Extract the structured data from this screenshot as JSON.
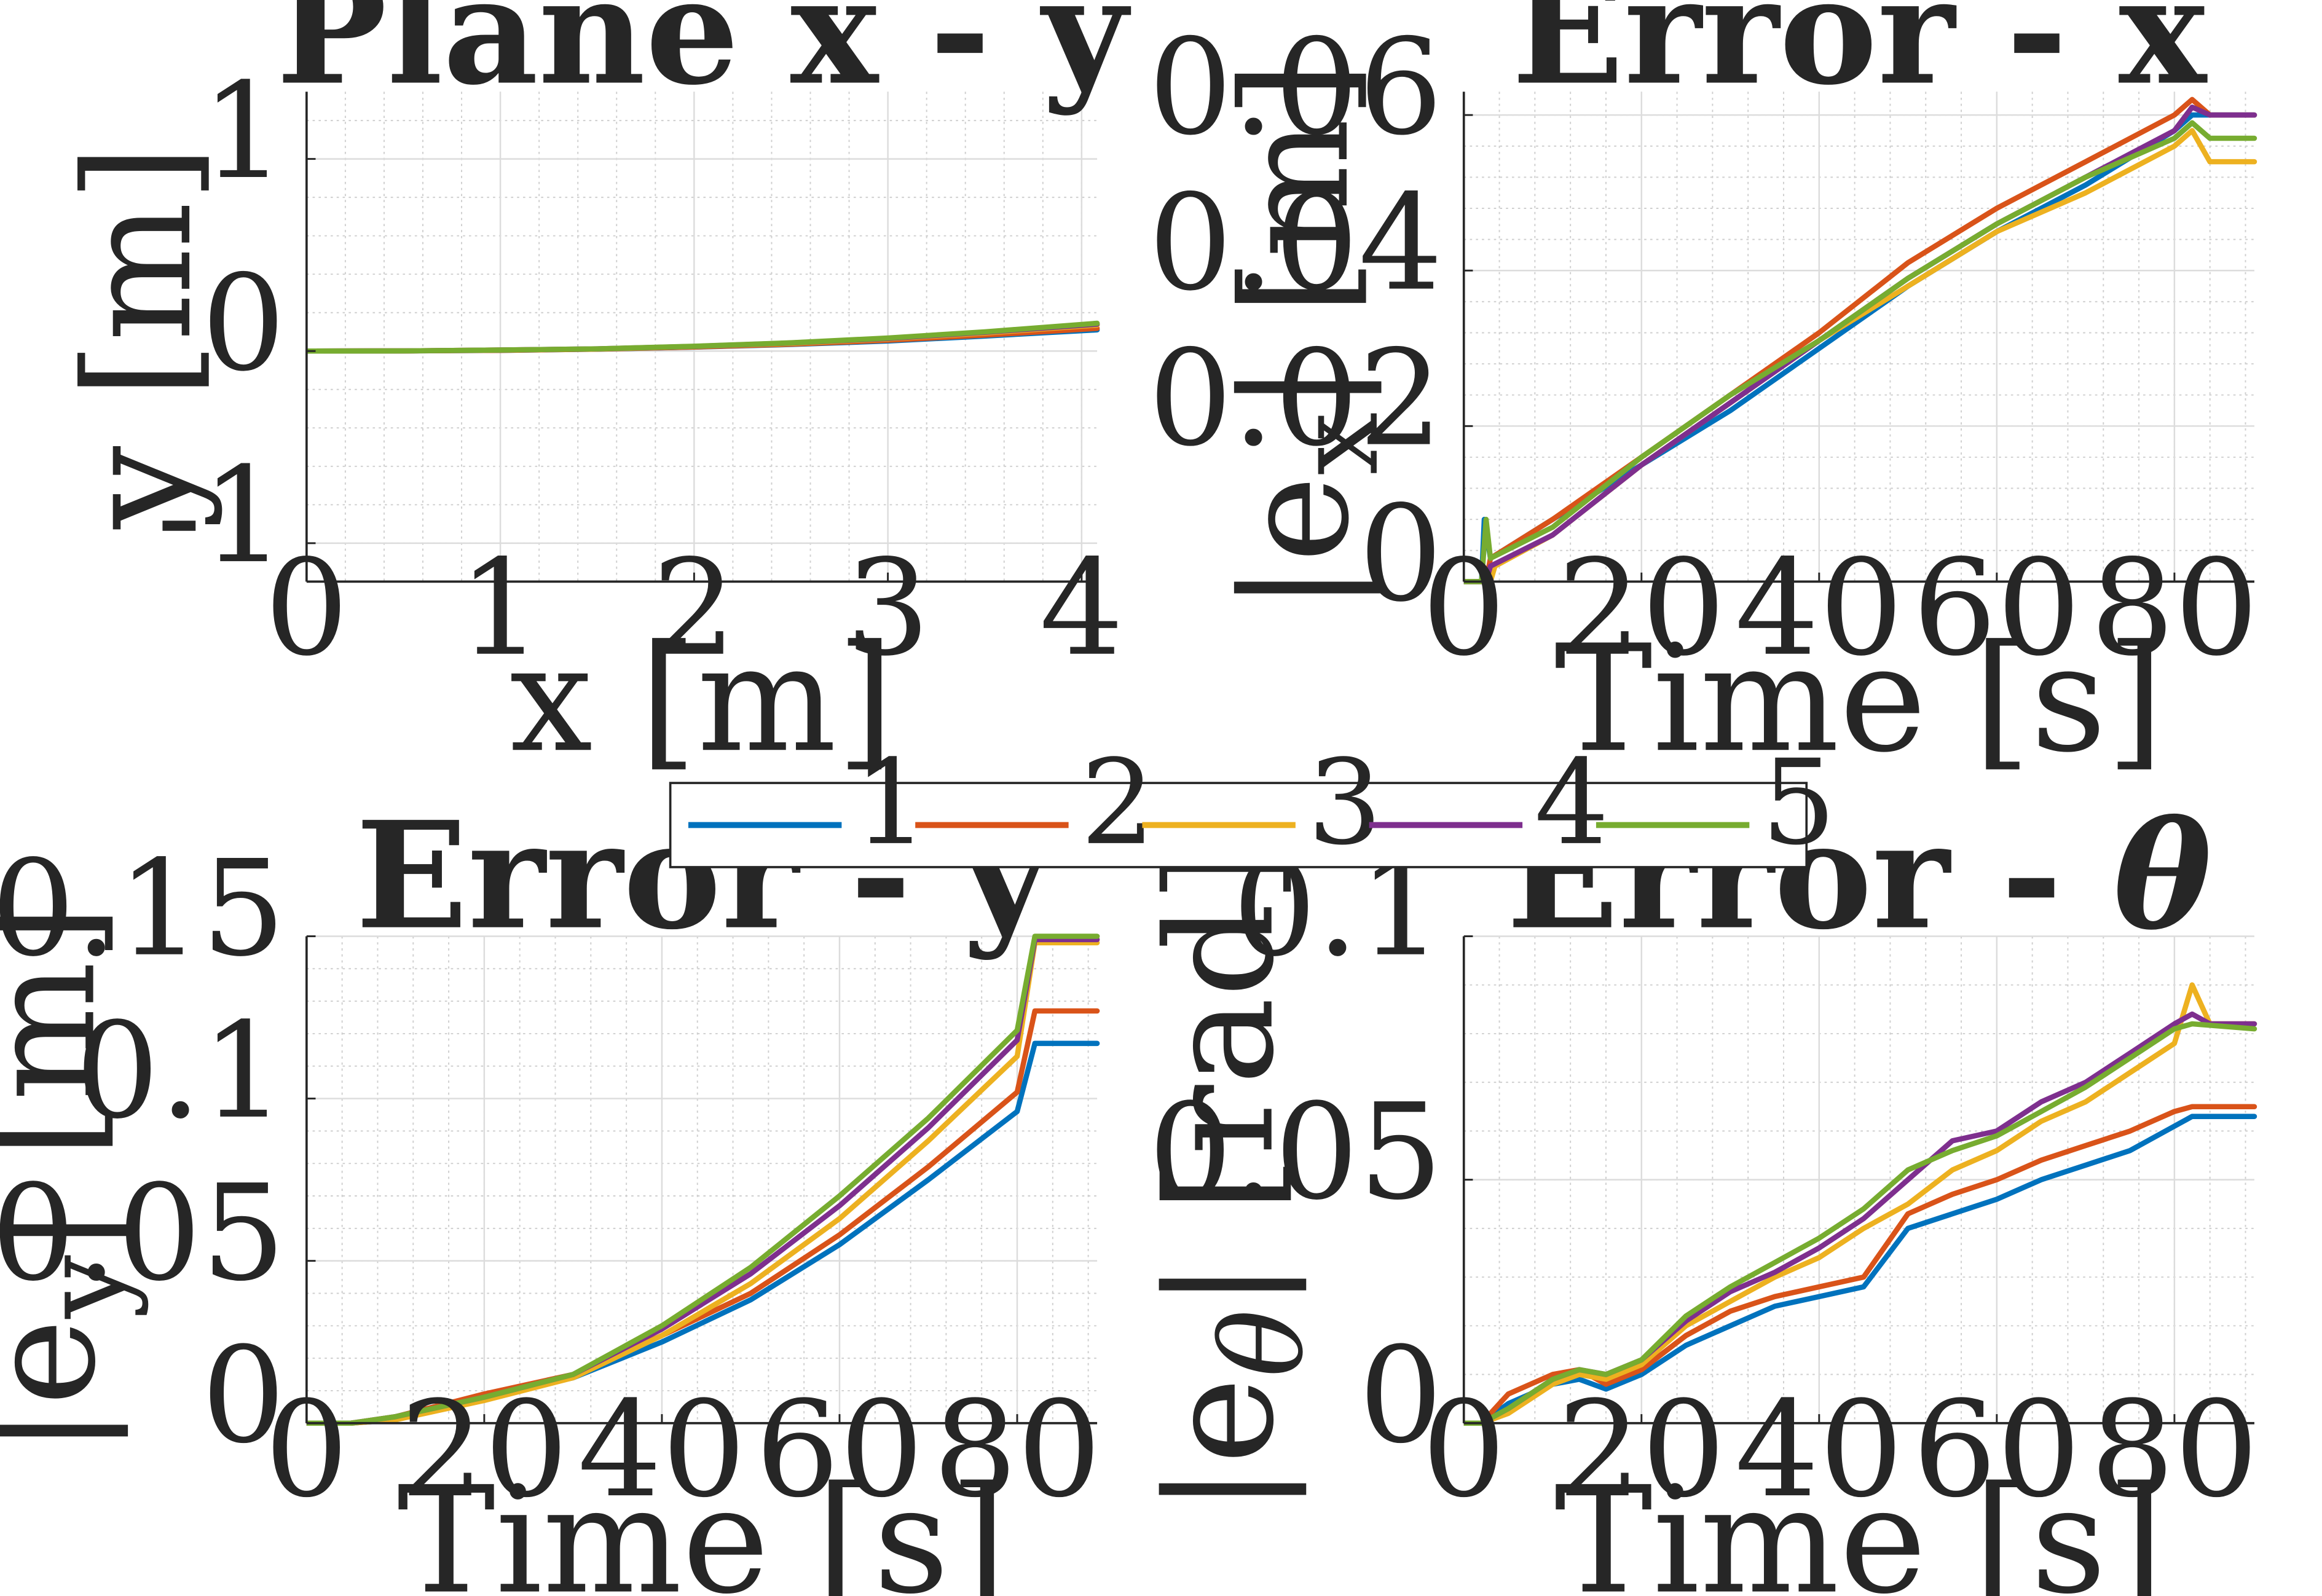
{
  "legend": {
    "entries": [
      "1",
      "2",
      "3",
      "4",
      "5"
    ],
    "colors": [
      "#0072BD",
      "#D95319",
      "#EDB120",
      "#7E2F8E",
      "#77AC30"
    ]
  },
  "chart_data": [
    {
      "type": "line",
      "title": "Plane x - y",
      "xlabel": "x [m]",
      "ylabel": "y [m]",
      "xlim": [
        0,
        4.08
      ],
      "ylim": [
        -1.2,
        1.35
      ],
      "xticks": [
        0,
        1,
        2,
        3,
        4
      ],
      "yticks": [
        -1,
        0,
        1
      ],
      "xtick_labels": [
        "0",
        "1",
        "2",
        "3",
        "4"
      ],
      "ytick_labels": [
        "-1",
        "0",
        "1"
      ],
      "grid": true,
      "series": [
        {
          "name": "1",
          "x": [
            0,
            0.5,
            1,
            1.5,
            2,
            2.5,
            3,
            3.5,
            4.08
          ],
          "y": [
            0,
            0.001,
            0.004,
            0.01,
            0.02,
            0.034,
            0.052,
            0.078,
            0.11
          ]
        },
        {
          "name": "2",
          "x": [
            0,
            0.5,
            1,
            1.5,
            2,
            2.5,
            3,
            3.5,
            4.08
          ],
          "y": [
            0,
            0.001,
            0.004,
            0.01,
            0.021,
            0.036,
            0.056,
            0.083,
            0.118
          ]
        },
        {
          "name": "3",
          "x": [
            0,
            0.5,
            1,
            1.5,
            2,
            2.5,
            3,
            3.5,
            4.08
          ],
          "y": [
            0,
            0.001,
            0.005,
            0.011,
            0.023,
            0.04,
            0.063,
            0.094,
            0.135
          ]
        },
        {
          "name": "4",
          "x": [
            0,
            0.5,
            1,
            1.5,
            2,
            2.5,
            3,
            3.5,
            4.08
          ],
          "y": [
            0,
            0.001,
            0.005,
            0.012,
            0.024,
            0.042,
            0.066,
            0.098,
            0.14
          ]
        },
        {
          "name": "5",
          "x": [
            0,
            0.5,
            1,
            1.5,
            2,
            2.5,
            3,
            3.5,
            4.08
          ],
          "y": [
            0,
            0.001,
            0.005,
            0.012,
            0.025,
            0.043,
            0.068,
            0.1,
            0.145
          ]
        }
      ]
    },
    {
      "type": "line",
      "title": "Error - x",
      "xlabel": "Time [s]",
      "ylabel": "|e_x| [m]",
      "xlim": [
        0,
        89
      ],
      "ylim": [
        0,
        0.063
      ],
      "xticks": [
        0,
        20,
        40,
        60,
        80
      ],
      "yticks": [
        0,
        0.02,
        0.04,
        0.06
      ],
      "xtick_labels": [
        "0",
        "20",
        "40",
        "60",
        "80"
      ],
      "ytick_labels": [
        "0",
        "0.02",
        "0.04",
        "0.06"
      ],
      "grid": true,
      "series": [
        {
          "name": "1",
          "x": [
            0,
            2,
            2.3,
            3,
            10,
            20,
            30,
            40,
            50,
            60,
            70,
            80,
            82,
            84,
            89
          ],
          "y": [
            0,
            0,
            0.008,
            0.003,
            0.008,
            0.015,
            0.022,
            0.03,
            0.038,
            0.045,
            0.051,
            0.058,
            0.06,
            0.06,
            0.06
          ]
        },
        {
          "name": "2",
          "x": [
            0,
            2.5,
            3,
            10,
            20,
            30,
            40,
            50,
            60,
            70,
            80,
            82,
            84,
            89
          ],
          "y": [
            0,
            0,
            0.003,
            0.008,
            0.016,
            0.024,
            0.032,
            0.041,
            0.048,
            0.054,
            0.06,
            0.062,
            0.06,
            0.06
          ]
        },
        {
          "name": "3",
          "x": [
            0,
            3,
            3.5,
            10,
            20,
            30,
            40,
            50,
            60,
            70,
            80,
            82,
            84,
            89
          ],
          "y": [
            0,
            0,
            0.002,
            0.006,
            0.015,
            0.023,
            0.031,
            0.038,
            0.045,
            0.05,
            0.056,
            0.058,
            0.054,
            0.054
          ]
        },
        {
          "name": "4",
          "x": [
            0,
            2.5,
            3,
            10,
            20,
            30,
            40,
            50,
            60,
            70,
            80,
            82,
            84,
            89
          ],
          "y": [
            0,
            0,
            0.002,
            0.006,
            0.015,
            0.023,
            0.031,
            0.039,
            0.046,
            0.052,
            0.058,
            0.061,
            0.06,
            0.06
          ]
        },
        {
          "name": "5",
          "x": [
            0,
            2,
            2.5,
            3,
            10,
            20,
            30,
            40,
            50,
            60,
            70,
            80,
            82,
            84,
            89
          ],
          "y": [
            0,
            0,
            0.008,
            0.003,
            0.007,
            0.016,
            0.024,
            0.031,
            0.039,
            0.046,
            0.052,
            0.057,
            0.059,
            0.057,
            0.057
          ]
        }
      ]
    },
    {
      "type": "line",
      "title": "Error - y",
      "xlabel": "Time [s]",
      "ylabel": "|e_y| [m]",
      "xlim": [
        0,
        89
      ],
      "ylim": [
        0,
        0.15
      ],
      "xticks": [
        0,
        20,
        40,
        60,
        80
      ],
      "yticks": [
        0,
        0.05,
        0.1,
        0.15
      ],
      "xtick_labels": [
        "0",
        "20",
        "40",
        "60",
        "80"
      ],
      "ytick_labels": [
        "0",
        "0.05",
        "0.1",
        "0.15"
      ],
      "grid": true,
      "series": [
        {
          "name": "1",
          "x": [
            0,
            5,
            10,
            20,
            30,
            40,
            50,
            60,
            70,
            80,
            82,
            89
          ],
          "y": [
            0,
            0,
            0.001,
            0.008,
            0.014,
            0.025,
            0.038,
            0.055,
            0.075,
            0.096,
            0.117,
            0.117
          ]
        },
        {
          "name": "2",
          "x": [
            0,
            5,
            10,
            20,
            30,
            40,
            50,
            60,
            70,
            80,
            82,
            89
          ],
          "y": [
            0,
            0,
            0.002,
            0.009,
            0.015,
            0.027,
            0.04,
            0.058,
            0.079,
            0.102,
            0.127,
            0.127
          ]
        },
        {
          "name": "3",
          "x": [
            0,
            5,
            10,
            20,
            30,
            40,
            50,
            60,
            70,
            80,
            82,
            89
          ],
          "y": [
            0,
            0,
            0.001,
            0.007,
            0.014,
            0.027,
            0.043,
            0.063,
            0.087,
            0.113,
            0.148,
            0.148
          ]
        },
        {
          "name": "4",
          "x": [
            0,
            5,
            10,
            20,
            30,
            40,
            50,
            60,
            70,
            80,
            82,
            89
          ],
          "y": [
            0,
            0,
            0.002,
            0.008,
            0.015,
            0.029,
            0.046,
            0.067,
            0.091,
            0.118,
            0.149,
            0.149
          ]
        },
        {
          "name": "5",
          "x": [
            0,
            5,
            10,
            20,
            30,
            40,
            50,
            60,
            70,
            80,
            82,
            89
          ],
          "y": [
            0,
            0,
            0.002,
            0.008,
            0.015,
            0.03,
            0.048,
            0.07,
            0.094,
            0.121,
            0.15,
            0.15
          ]
        }
      ]
    },
    {
      "type": "line",
      "title": "Error - θ",
      "xlabel": "Time [s]",
      "ylabel": "|e_θ| [rad]",
      "xlim": [
        0,
        89
      ],
      "ylim": [
        0,
        0.1
      ],
      "xticks": [
        0,
        20,
        40,
        60,
        80
      ],
      "yticks": [
        0,
        0.05,
        0.1
      ],
      "xtick_labels": [
        "0",
        "20",
        "40",
        "60",
        "80"
      ],
      "ytick_labels": [
        "0",
        "0.05",
        "0.1"
      ],
      "grid": true,
      "series": [
        {
          "name": "1",
          "x": [
            0,
            2,
            5,
            10,
            13,
            16,
            20,
            25,
            30,
            35,
            40,
            45,
            50,
            55,
            60,
            65,
            70,
            75,
            80,
            82,
            89
          ],
          "y": [
            0,
            0,
            0.004,
            0.008,
            0.009,
            0.007,
            0.01,
            0.016,
            0.02,
            0.024,
            0.026,
            0.028,
            0.04,
            0.043,
            0.046,
            0.05,
            0.053,
            0.056,
            0.061,
            0.063,
            0.063
          ]
        },
        {
          "name": "2",
          "x": [
            0,
            2,
            5,
            10,
            13,
            16,
            20,
            25,
            30,
            35,
            40,
            45,
            50,
            55,
            60,
            65,
            70,
            75,
            80,
            82,
            89
          ],
          "y": [
            0,
            0,
            0.006,
            0.01,
            0.011,
            0.008,
            0.011,
            0.018,
            0.023,
            0.026,
            0.028,
            0.03,
            0.043,
            0.047,
            0.05,
            0.054,
            0.057,
            0.06,
            0.064,
            0.065,
            0.065
          ]
        },
        {
          "name": "3",
          "x": [
            0,
            2,
            5,
            10,
            13,
            16,
            20,
            25,
            30,
            35,
            40,
            45,
            50,
            55,
            60,
            65,
            70,
            75,
            80,
            82,
            84,
            89
          ],
          "y": [
            0,
            0,
            0.002,
            0.008,
            0.01,
            0.009,
            0.012,
            0.02,
            0.025,
            0.03,
            0.034,
            0.04,
            0.045,
            0.052,
            0.056,
            0.062,
            0.066,
            0.072,
            0.078,
            0.09,
            0.082,
            0.082
          ]
        },
        {
          "name": "4",
          "x": [
            0,
            2,
            5,
            10,
            13,
            16,
            20,
            25,
            30,
            35,
            40,
            45,
            50,
            55,
            60,
            65,
            70,
            75,
            80,
            82,
            84,
            89
          ],
          "y": [
            0,
            0,
            0.003,
            0.009,
            0.011,
            0.01,
            0.013,
            0.021,
            0.027,
            0.031,
            0.036,
            0.042,
            0.05,
            0.058,
            0.06,
            0.066,
            0.07,
            0.076,
            0.082,
            0.084,
            0.082,
            0.082
          ]
        },
        {
          "name": "5",
          "x": [
            0,
            2,
            5,
            10,
            13,
            16,
            20,
            25,
            30,
            35,
            40,
            45,
            50,
            55,
            60,
            65,
            70,
            75,
            80,
            82,
            89
          ],
          "y": [
            0,
            0,
            0.003,
            0.009,
            0.011,
            0.01,
            0.013,
            0.022,
            0.028,
            0.033,
            0.038,
            0.044,
            0.052,
            0.056,
            0.059,
            0.064,
            0.069,
            0.075,
            0.081,
            0.082,
            0.081
          ]
        }
      ]
    }
  ]
}
